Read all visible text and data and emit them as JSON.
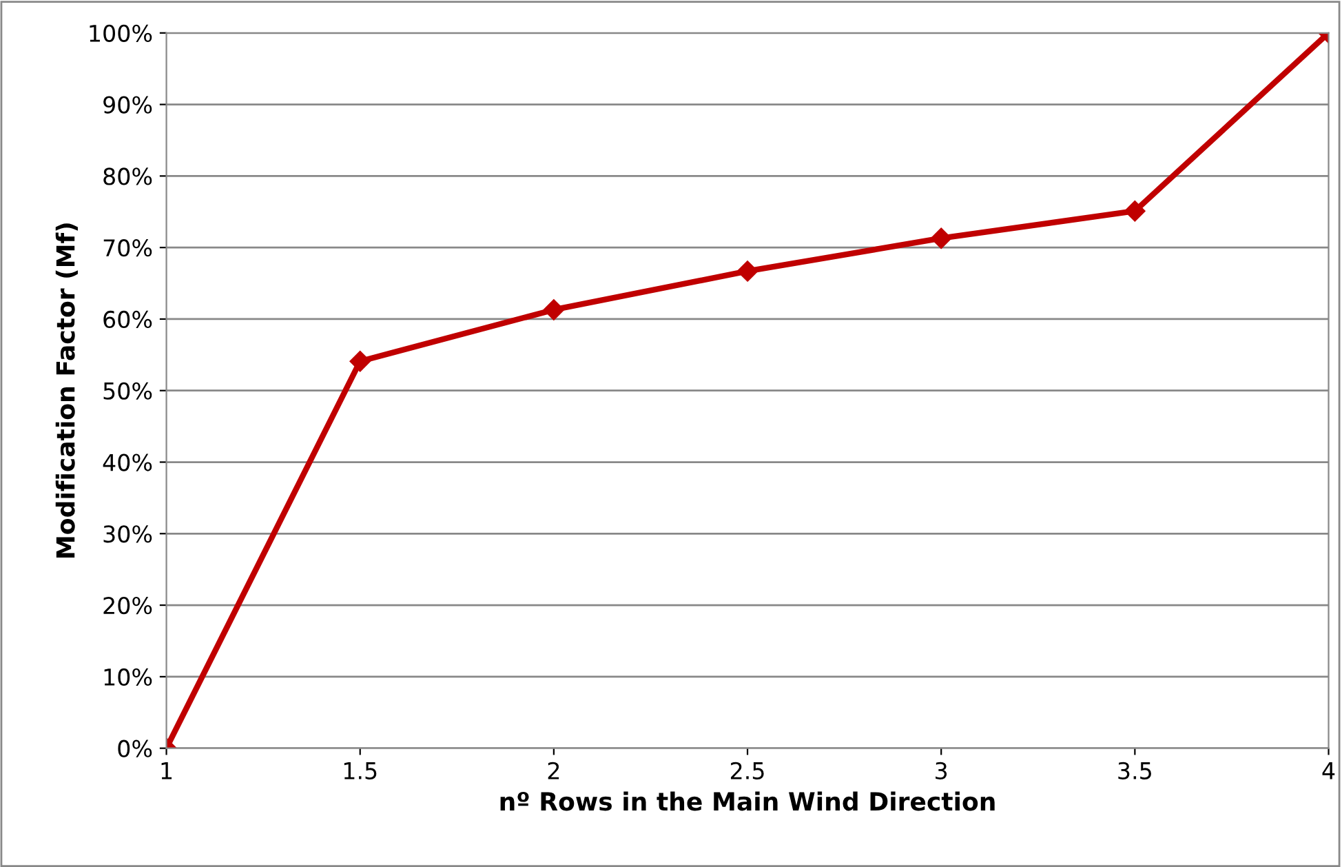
{
  "chart_data": {
    "type": "line",
    "xlabel": "nº Rows in the Main Wind Direction",
    "ylabel": "Modification Factor (Mf)",
    "x": [
      1,
      1.5,
      2,
      2.5,
      3,
      3.5,
      4
    ],
    "series": [
      {
        "color": "#c00000",
        "values": [
          0,
          54.1,
          61.3,
          66.7,
          71.3,
          75.1,
          100
        ]
      }
    ],
    "xlim": [
      1,
      4
    ],
    "xticks": [
      1,
      1.5,
      2,
      2.5,
      3,
      3.5,
      4
    ],
    "ylim": [
      0,
      100
    ],
    "yticks": [
      {
        "value": 0,
        "label": "0%"
      },
      {
        "value": 10,
        "label": "10%"
      },
      {
        "value": 20,
        "label": "20%"
      },
      {
        "value": 30,
        "label": "30%"
      },
      {
        "value": 40,
        "label": "40%"
      },
      {
        "value": 50,
        "label": "50%"
      },
      {
        "value": 60,
        "label": "60%"
      },
      {
        "value": 70,
        "label": "70%"
      },
      {
        "value": 80,
        "label": "80%"
      },
      {
        "value": 90,
        "label": "90%"
      },
      {
        "value": 100,
        "label": "100%"
      }
    ],
    "grid": "y",
    "marker": "diamond",
    "line_style": "solid"
  }
}
